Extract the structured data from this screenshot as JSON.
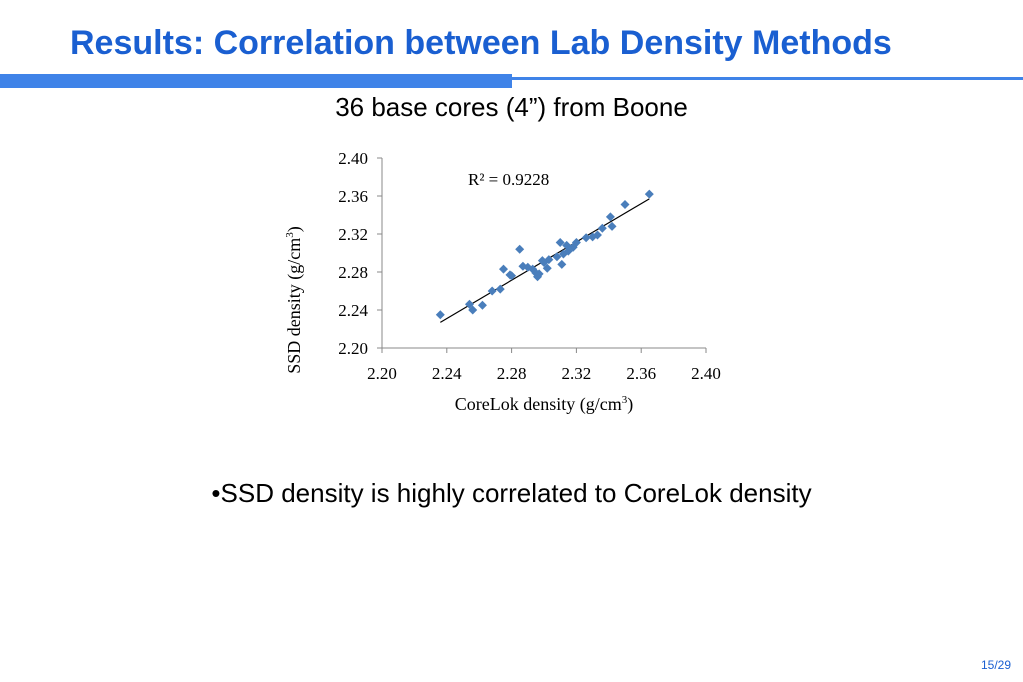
{
  "slide": {
    "title": "Results: Correlation between Lab Density Methods",
    "bullet": "•SSD density is highly correlated to CoreLok density",
    "page_number": "15/29",
    "accent_color": "#3f83e8",
    "title_color": "#1a5fd1"
  },
  "chart_data": {
    "type": "scatter",
    "title": "36 base cores (4”) from Boone",
    "xlabel": "CoreLok density (g/cm",
    "xlabel_sup": "3",
    "xlabel_end": ")",
    "ylabel": "SSD density (g/cm",
    "ylabel_sup": "3",
    "ylabel_end": ")",
    "xlim": [
      2.2,
      2.4
    ],
    "ylim": [
      2.2,
      2.4
    ],
    "xticks": [
      "2.20",
      "2.24",
      "2.28",
      "2.32",
      "2.36",
      "2.40"
    ],
    "yticks": [
      "2.40",
      "2.36",
      "2.32",
      "2.28",
      "2.24",
      "2.20"
    ],
    "grid": false,
    "legend": "none",
    "marker": "diamond",
    "marker_color": "#4a7ebb",
    "trendline": {
      "type": "linear",
      "x_range": [
        2.236,
        2.365
      ],
      "y_range": [
        2.227,
        2.357
      ],
      "annotation": "R² = 0.9228"
    },
    "series": [
      {
        "points": [
          [
            2.236,
            2.235
          ],
          [
            2.254,
            2.246
          ],
          [
            2.256,
            2.24
          ],
          [
            2.262,
            2.245
          ],
          [
            2.268,
            2.26
          ],
          [
            2.273,
            2.262
          ],
          [
            2.275,
            2.283
          ],
          [
            2.28,
            2.276
          ],
          [
            2.285,
            2.304
          ],
          [
            2.287,
            2.286
          ],
          [
            2.293,
            2.283
          ],
          [
            2.295,
            2.279
          ],
          [
            2.296,
            2.275
          ],
          [
            2.297,
            2.278
          ],
          [
            2.3,
            2.29
          ],
          [
            2.302,
            2.284
          ],
          [
            2.303,
            2.293
          ],
          [
            2.31,
            2.311
          ],
          [
            2.311,
            2.288
          ],
          [
            2.312,
            2.299
          ],
          [
            2.314,
            2.308
          ],
          [
            2.315,
            2.302
          ],
          [
            2.318,
            2.306
          ],
          [
            2.32,
            2.311
          ],
          [
            2.33,
            2.317
          ],
          [
            2.333,
            2.319
          ],
          [
            2.336,
            2.326
          ],
          [
            2.341,
            2.338
          ],
          [
            2.342,
            2.328
          ],
          [
            2.35,
            2.351
          ],
          [
            2.365,
            2.362
          ],
          [
            2.299,
            2.292
          ],
          [
            2.29,
            2.285
          ],
          [
            2.308,
            2.296
          ],
          [
            2.326,
            2.316
          ],
          [
            2.279,
            2.277
          ]
        ]
      }
    ]
  }
}
